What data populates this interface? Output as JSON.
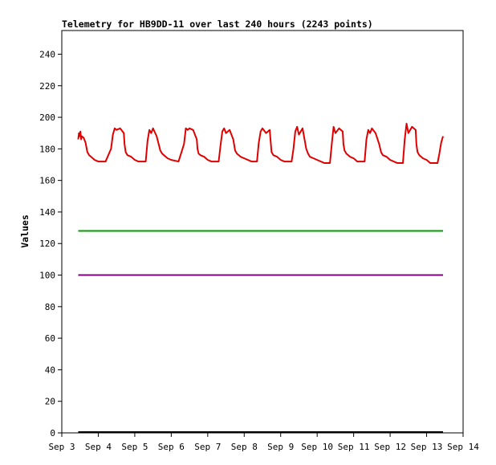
{
  "chart_data": {
    "type": "line",
    "title": "Telemetry for HB9DD-11 over last 240 hours (2243 points)",
    "xlabel": "",
    "ylabel": "Values",
    "ylim": [
      0,
      255
    ],
    "xlim": [
      0,
      11
    ],
    "yticks": [
      0,
      20,
      40,
      60,
      80,
      100,
      120,
      140,
      160,
      180,
      200,
      220,
      240
    ],
    "xticks": [
      {
        "x": 0,
        "label": "Sep 3"
      },
      {
        "x": 1,
        "label": "Sep 4"
      },
      {
        "x": 2,
        "label": "Sep 5"
      },
      {
        "x": 3,
        "label": "Sep 6"
      },
      {
        "x": 4,
        "label": "Sep 7"
      },
      {
        "x": 5,
        "label": "Sep 8"
      },
      {
        "x": 6,
        "label": "Sep 9"
      },
      {
        "x": 7,
        "label": "Sep 10"
      },
      {
        "x": 8,
        "label": "Sep 11"
      },
      {
        "x": 9,
        "label": "Sep 12"
      },
      {
        "x": 10,
        "label": "Sep 13"
      },
      {
        "x": 11,
        "label": "Sep 14"
      }
    ],
    "grid": false,
    "legend": "none",
    "series": [
      {
        "color": "#e00000",
        "x": [
          0.45,
          0.47,
          0.49,
          0.51,
          0.53,
          0.55,
          0.6,
          0.65,
          0.7,
          0.75,
          0.8,
          0.9,
          1.0,
          1.2,
          1.35,
          1.4,
          1.45,
          1.5,
          1.6,
          1.7,
          1.72,
          1.75,
          1.8,
          1.9,
          2.0,
          2.1,
          2.3,
          2.35,
          2.4,
          2.45,
          2.5,
          2.6,
          2.7,
          2.75,
          2.8,
          2.9,
          3.0,
          3.2,
          3.35,
          3.4,
          3.45,
          3.5,
          3.6,
          3.7,
          3.72,
          3.75,
          3.8,
          3.9,
          4.0,
          4.1,
          4.3,
          4.35,
          4.4,
          4.45,
          4.5,
          4.6,
          4.7,
          4.75,
          4.8,
          4.9,
          5.0,
          5.2,
          5.35,
          5.4,
          5.45,
          5.5,
          5.6,
          5.7,
          5.72,
          5.75,
          5.8,
          5.9,
          6.0,
          6.1,
          6.3,
          6.35,
          6.4,
          6.45,
          6.5,
          6.6,
          6.7,
          6.75,
          6.8,
          6.9,
          7.0,
          7.2,
          7.35,
          7.4,
          7.45,
          7.5,
          7.6,
          7.7,
          7.72,
          7.75,
          7.8,
          7.9,
          8.0,
          8.1,
          8.3,
          8.35,
          8.4,
          8.45,
          8.5,
          8.6,
          8.7,
          8.75,
          8.8,
          8.9,
          9.0,
          9.2,
          9.35,
          9.4,
          9.45,
          9.5,
          9.6,
          9.7,
          9.72,
          9.75,
          9.8,
          9.9,
          10.0,
          10.1,
          10.3,
          10.35,
          10.4,
          10.45
        ],
        "y": [
          186,
          190,
          188,
          191,
          186,
          188,
          187,
          184,
          178,
          176,
          175,
          173,
          172,
          172,
          180,
          189,
          193,
          192,
          193,
          190,
          183,
          178,
          176,
          175,
          173,
          172,
          172,
          185,
          192,
          190,
          193,
          188,
          179,
          177,
          176,
          174,
          173,
          172,
          183,
          193,
          192,
          193,
          192,
          186,
          180,
          177,
          176,
          175,
          173,
          172,
          172,
          182,
          191,
          193,
          190,
          192,
          186,
          179,
          177,
          175,
          174,
          172,
          172,
          184,
          191,
          193,
          190,
          192,
          186,
          178,
          176,
          175,
          173,
          172,
          172,
          180,
          191,
          194,
          189,
          193,
          180,
          177,
          175,
          174,
          173,
          171,
          171,
          183,
          194,
          190,
          193,
          191,
          183,
          179,
          177,
          175,
          174,
          172,
          172,
          186,
          192,
          190,
          193,
          190,
          183,
          178,
          176,
          175,
          173,
          171,
          171,
          186,
          196,
          190,
          194,
          192,
          183,
          178,
          176,
          174,
          173,
          171,
          171,
          177,
          184,
          188
        ]
      },
      {
        "color": "#00a000",
        "x": [
          0.45,
          10.45
        ],
        "y": [
          128,
          128
        ]
      },
      {
        "color": "#800080",
        "x": [
          0.45,
          10.45
        ],
        "y": [
          100,
          100
        ]
      },
      {
        "color": "#000000",
        "x": [
          0.45,
          10.45
        ],
        "y": [
          0.5,
          0.5
        ]
      }
    ]
  }
}
